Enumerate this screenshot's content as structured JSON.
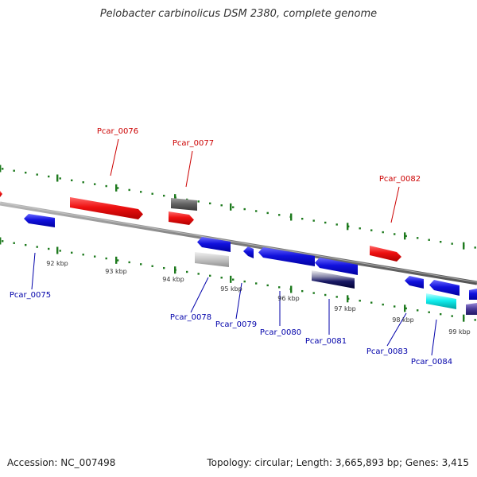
{
  "title": "Pelobacter carbinolicus DSM 2380, complete genome",
  "footer": {
    "accession": "Accession: NC_007498",
    "summary": "Topology: circular; Length: 3,665,893 bp; Genes: 3,415"
  },
  "colors": {
    "backbone": "#8a8a8a",
    "forward_label": "#cc0000",
    "reverse_label": "#0000aa",
    "tick": "#1e7a1e",
    "kbp_label": "#333333"
  },
  "kbp_ticks": [
    {
      "label": "92 kbp"
    },
    {
      "label": "93 kbp"
    },
    {
      "label": "94 kbp"
    },
    {
      "label": "95 kbp"
    },
    {
      "label": "96 kbp"
    },
    {
      "label": "97 kbp"
    },
    {
      "label": "98 kbp"
    },
    {
      "label": "99 kbp"
    }
  ],
  "genes": [
    {
      "id": "Pcar_0075",
      "strand": "reverse",
      "color": "#1111dd"
    },
    {
      "id": "Pcar_0076",
      "strand": "forward",
      "color": "#ee1111"
    },
    {
      "id": "Pcar_0077",
      "strand": "forward",
      "color": "#666666"
    },
    {
      "id": "Pcar_0078",
      "strand": "reverse",
      "color": "#1111dd"
    },
    {
      "id": "Pcar_0079",
      "strand": "reverse",
      "color": "#1111dd"
    },
    {
      "id": "Pcar_0080",
      "strand": "reverse",
      "color": "#1111dd"
    },
    {
      "id": "Pcar_0081",
      "strand": "reverse",
      "color": "#1111dd"
    },
    {
      "id": "Pcar_0082",
      "strand": "forward",
      "color": "#ee1111"
    },
    {
      "id": "Pcar_0083",
      "strand": "reverse",
      "color": "#1111dd"
    },
    {
      "id": "Pcar_0084",
      "strand": "reverse",
      "color": "#1111dd"
    }
  ]
}
